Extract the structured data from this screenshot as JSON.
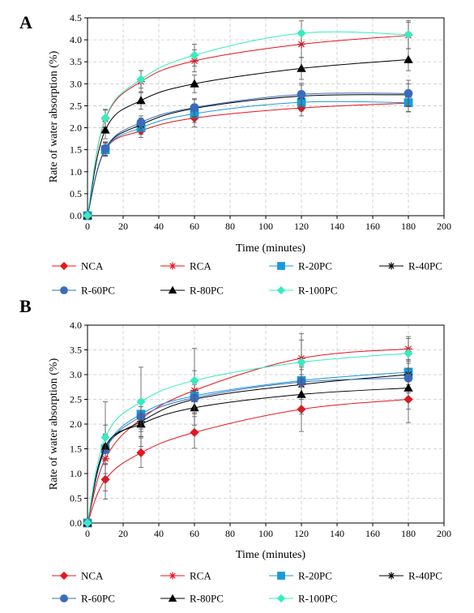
{
  "figure": {
    "panels": [
      {
        "letter": "A"
      },
      {
        "letter": "B"
      }
    ]
  },
  "chart_data": [
    {
      "type": "line",
      "panel": "A",
      "xlabel": "Time (minutes)",
      "ylabel": "Rate of water absorption (%)",
      "xlim": [
        0,
        200
      ],
      "ylim": [
        0,
        4.5
      ],
      "xticks": [
        "0",
        "20",
        "40",
        "60",
        "80",
        "100",
        "120",
        "140",
        "160",
        "180",
        "200"
      ],
      "yticks": [
        "0.0",
        "0.5",
        "1.0",
        "1.5",
        "2.0",
        "2.5",
        "3.0",
        "3.5",
        "4.0",
        "4.5"
      ],
      "grid": true,
      "legend_position": "bottom",
      "x": [
        0,
        10,
        30,
        60,
        120,
        180
      ],
      "series": [
        {
          "name": "NCA",
          "color": "#e8141c",
          "marker": "diamond",
          "values": [
            0,
            1.5,
            1.93,
            2.22,
            2.45,
            2.56
          ],
          "errors": [
            0,
            0.15,
            0.15,
            0.2,
            0.18,
            0.2
          ]
        },
        {
          "name": "RCA",
          "color": "#e8141c",
          "marker": "asterisk",
          "values": [
            0,
            2.2,
            3.05,
            3.52,
            3.9,
            4.1
          ],
          "errors": [
            0,
            0.2,
            0.25,
            0.25,
            0.3,
            0.3
          ]
        },
        {
          "name": "R-20PC",
          "color": "#1a9ad9",
          "marker": "square",
          "values": [
            0,
            1.5,
            2.0,
            2.32,
            2.58,
            2.57
          ],
          "errors": [
            0,
            0.15,
            0.15,
            0.2,
            0.2,
            0.2
          ]
        },
        {
          "name": "R-40PC",
          "color": "#000000",
          "marker": "asterisk",
          "values": [
            0,
            1.52,
            2.07,
            2.44,
            2.72,
            2.75
          ],
          "errors": [
            0,
            0.15,
            0.15,
            0.2,
            0.25,
            0.25
          ]
        },
        {
          "name": "R-60PC",
          "color": "#3a6bbd",
          "marker": "circle",
          "values": [
            0,
            1.53,
            2.12,
            2.46,
            2.76,
            2.78
          ],
          "errors": [
            0,
            0.15,
            0.15,
            0.2,
            0.25,
            0.3
          ]
        },
        {
          "name": "R-80PC",
          "color": "#000000",
          "marker": "triangle",
          "values": [
            0,
            1.95,
            2.62,
            3.0,
            3.35,
            3.55
          ],
          "errors": [
            0,
            0.2,
            0.2,
            0.2,
            0.25,
            0.25
          ]
        },
        {
          "name": "R-100PC",
          "color": "#35ecc0",
          "marker": "diamond",
          "values": [
            0,
            2.22,
            3.1,
            3.65,
            4.15,
            4.12
          ],
          "errors": [
            0,
            0.2,
            0.2,
            0.25,
            0.28,
            0.32
          ]
        }
      ]
    },
    {
      "type": "line",
      "panel": "B",
      "xlabel": "Time (minutes)",
      "ylabel": "Rate of water absorption (%)",
      "xlim": [
        0,
        200
      ],
      "ylim": [
        0,
        4.0
      ],
      "xticks": [
        "0",
        "20",
        "40",
        "60",
        "80",
        "100",
        "120",
        "140",
        "160",
        "180",
        "200"
      ],
      "yticks": [
        "0.0",
        "0.5",
        "1.0",
        "1.5",
        "2.0",
        "2.5",
        "3.0",
        "3.5",
        "4.0"
      ],
      "grid": true,
      "legend_position": "bottom",
      "x": [
        0,
        10,
        30,
        60,
        120,
        180
      ],
      "series": [
        {
          "name": "NCA",
          "color": "#e8141c",
          "marker": "diamond",
          "values": [
            0,
            0.88,
            1.42,
            1.83,
            2.3,
            2.5
          ],
          "errors": [
            0,
            0.4,
            0.3,
            0.32,
            0.45,
            0.2
          ]
        },
        {
          "name": "RCA",
          "color": "#e8141c",
          "marker": "asterisk",
          "values": [
            0,
            1.3,
            2.1,
            2.68,
            3.33,
            3.52
          ],
          "errors": [
            0,
            0.3,
            0.35,
            0.4,
            0.5,
            0.25
          ]
        },
        {
          "name": "R-20PC",
          "color": "#1a9ad9",
          "marker": "square",
          "values": [
            0,
            1.5,
            2.2,
            2.57,
            2.88,
            3.05
          ],
          "errors": [
            0,
            0.3,
            0.3,
            0.3,
            0.3,
            0.25
          ]
        },
        {
          "name": "R-40PC",
          "color": "#000000",
          "marker": "asterisk",
          "values": [
            0,
            1.5,
            2.05,
            2.5,
            2.8,
            3.0
          ],
          "errors": [
            0,
            0.3,
            0.3,
            0.3,
            0.3,
            0.3
          ]
        },
        {
          "name": "R-60PC",
          "color": "#3a6bbd",
          "marker": "circle",
          "values": [
            0,
            1.48,
            2.15,
            2.53,
            2.85,
            2.93
          ],
          "errors": [
            0,
            0.3,
            0.3,
            0.3,
            0.3,
            0.3
          ]
        },
        {
          "name": "R-80PC",
          "color": "#000000",
          "marker": "triangle",
          "values": [
            0,
            1.55,
            2.0,
            2.33,
            2.6,
            2.73
          ],
          "errors": [
            0,
            0.9,
            0.45,
            0.35,
            0.4,
            0.7
          ]
        },
        {
          "name": "R-100PC",
          "color": "#35ecc0",
          "marker": "diamond",
          "values": [
            0,
            1.73,
            2.45,
            2.88,
            3.25,
            3.43
          ],
          "errors": [
            0,
            0.25,
            0.7,
            0.65,
            0.45,
            0.3
          ]
        }
      ]
    }
  ]
}
